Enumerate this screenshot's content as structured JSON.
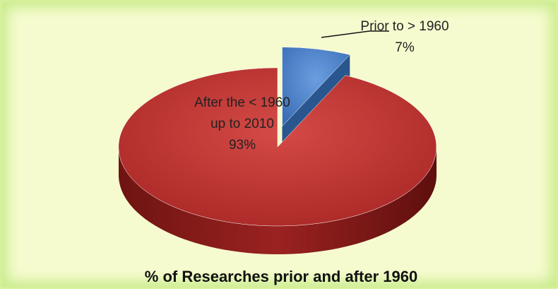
{
  "chart_data": {
    "type": "pie3d",
    "title": "% of Researches prior and after 1960",
    "categories": [
      "Prior to > 1960",
      "After the < 1960 up to 2010"
    ],
    "values": [
      7,
      93
    ],
    "value_labels": [
      "7%",
      "93%"
    ],
    "colors": [
      "#4a7fc8",
      "#c0302e"
    ],
    "exploded": [
      0
    ]
  }
}
